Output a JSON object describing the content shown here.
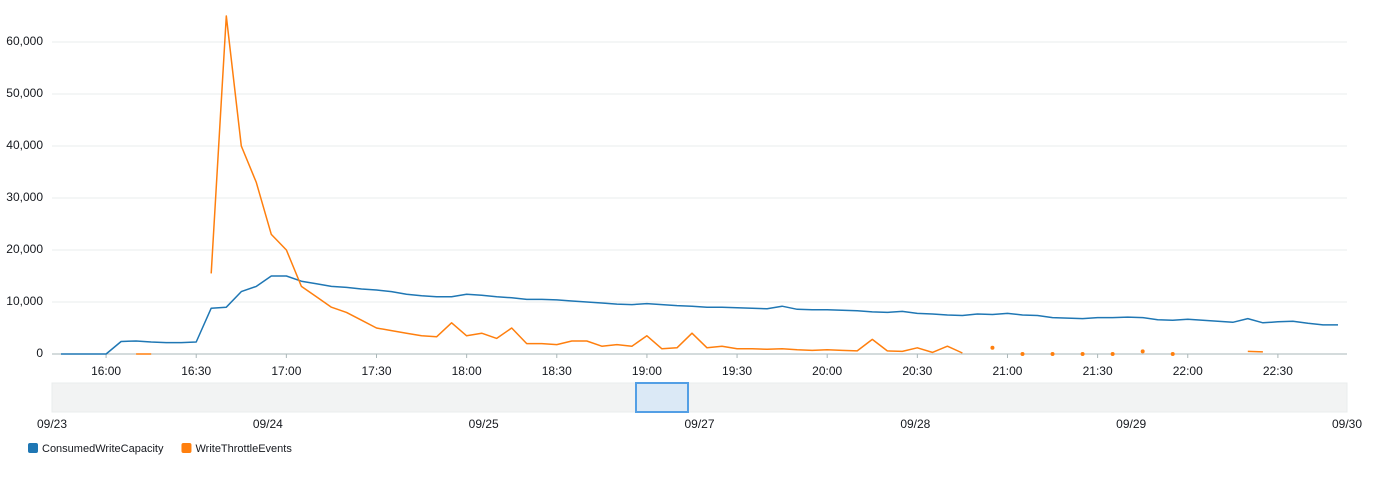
{
  "chart_data": {
    "type": "line",
    "x": [
      "15:45",
      "15:50",
      "15:55",
      "16:00",
      "16:05",
      "16:10",
      "16:15",
      "16:20",
      "16:25",
      "16:30",
      "16:35",
      "16:40",
      "16:45",
      "16:50",
      "16:55",
      "17:00",
      "17:05",
      "17:10",
      "17:15",
      "17:20",
      "17:25",
      "17:30",
      "17:35",
      "17:40",
      "17:45",
      "17:50",
      "17:55",
      "18:00",
      "18:05",
      "18:10",
      "18:15",
      "18:20",
      "18:25",
      "18:30",
      "18:35",
      "18:40",
      "18:45",
      "18:50",
      "18:55",
      "19:00",
      "19:05",
      "19:10",
      "19:15",
      "19:20",
      "19:25",
      "19:30",
      "19:35",
      "19:40",
      "19:45",
      "19:50",
      "19:55",
      "20:00",
      "20:05",
      "20:10",
      "20:15",
      "20:20",
      "20:25",
      "20:30",
      "20:35",
      "20:40",
      "20:45",
      "20:50",
      "20:55",
      "21:00",
      "21:05",
      "21:10",
      "21:15",
      "21:20",
      "21:25",
      "21:30",
      "21:35",
      "21:40",
      "21:45",
      "21:50",
      "21:55",
      "22:00",
      "22:05",
      "22:10",
      "22:15",
      "22:20",
      "22:25",
      "22:30",
      "22:35",
      "22:40",
      "22:45",
      "22:50"
    ],
    "series": [
      {
        "name": "ConsumedWriteCapacity",
        "color": "#1f77b4",
        "values": [
          0,
          0,
          0,
          0,
          2400,
          2500,
          2300,
          2200,
          2200,
          2300,
          8800,
          9000,
          12000,
          13000,
          15000,
          15000,
          14000,
          13500,
          13000,
          12800,
          12500,
          12300,
          12000,
          11500,
          11200,
          11000,
          11000,
          11500,
          11300,
          11000,
          10800,
          10500,
          10500,
          10400,
          10200,
          10000,
          9800,
          9600,
          9500,
          9700,
          9500,
          9300,
          9200,
          9000,
          9000,
          8900,
          8800,
          8700,
          9200,
          8600,
          8500,
          8500,
          8400,
          8300,
          8100,
          8000,
          8200,
          7800,
          7700,
          7500,
          7400,
          7700,
          7600,
          7800,
          7500,
          7400,
          7000,
          6900,
          6800,
          7000,
          7000,
          7100,
          7000,
          6600,
          6500,
          6700,
          6500,
          6300,
          6100,
          6800,
          6000,
          6200,
          6300,
          5900,
          5600,
          5600
        ]
      },
      {
        "name": "WriteThrottleEvents",
        "color": "#ff7f0e",
        "values": [
          null,
          null,
          null,
          null,
          null,
          0,
          0,
          null,
          null,
          null,
          15500,
          65000,
          40000,
          33000,
          23000,
          20000,
          13000,
          11000,
          9000,
          8000,
          6500,
          5000,
          4500,
          4000,
          3500,
          3300,
          6000,
          3500,
          4000,
          3000,
          5000,
          2000,
          2000,
          1800,
          2500,
          2500,
          1500,
          1800,
          1500,
          3500,
          1000,
          1200,
          4000,
          1200,
          1500,
          1000,
          1000,
          900,
          1000,
          800,
          700,
          800,
          700,
          600,
          2800,
          600,
          500,
          1200,
          300,
          1500,
          200,
          null,
          1200,
          null,
          0,
          null,
          0,
          null,
          0,
          null,
          0,
          null,
          500,
          null,
          0,
          null,
          null,
          null,
          null,
          500,
          400,
          null,
          null,
          null,
          null,
          null
        ]
      }
    ],
    "xlim": [
      "15:42",
      "22:53"
    ],
    "xticks": [
      "16:00",
      "16:30",
      "17:00",
      "17:30",
      "18:00",
      "18:30",
      "19:00",
      "19:30",
      "20:00",
      "20:30",
      "21:00",
      "21:30",
      "22:00",
      "22:30"
    ],
    "ylim": [
      0,
      66000
    ],
    "yticks": [
      0,
      {
        "value": 10000,
        "label": "10,000"
      },
      {
        "value": 20000,
        "label": "20,000"
      },
      {
        "value": 30000,
        "label": "30,000"
      },
      {
        "value": 40000,
        "label": "40,000"
      },
      {
        "value": 50000,
        "label": "50,000"
      },
      {
        "value": 60000,
        "label": "60,000"
      }
    ],
    "grid": true,
    "navigator_labels": [
      "09/23",
      "09/24",
      "09/25",
      "09/27",
      "09/28",
      "09/29",
      "09/30"
    ]
  }
}
